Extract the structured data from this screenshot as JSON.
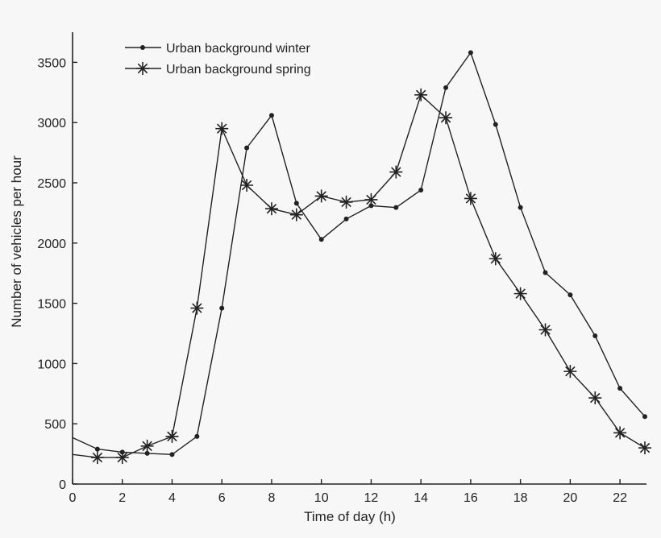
{
  "chart_data": {
    "type": "line",
    "xlabel": "Time of day (h)",
    "ylabel": "Number of vehicles per hour",
    "xlim": [
      0,
      23
    ],
    "ylim": [
      0,
      3750
    ],
    "xticks": [
      0,
      2,
      4,
      6,
      8,
      10,
      12,
      14,
      16,
      18,
      20,
      22
    ],
    "yticks": [
      0,
      500,
      1000,
      1500,
      2000,
      2500,
      3000,
      3500
    ],
    "legend_position": "top-left",
    "grid": false,
    "x": [
      0,
      1,
      2,
      3,
      4,
      5,
      6,
      7,
      8,
      9,
      10,
      11,
      12,
      13,
      14,
      15,
      16,
      17,
      18,
      19,
      20,
      21,
      22,
      23
    ],
    "series": [
      {
        "name": "Urban background winter",
        "marker": "dot",
        "values": [
          385,
          290,
          265,
          255,
          245,
          395,
          1460,
          2790,
          3060,
          2330,
          2030,
          2200,
          2310,
          2295,
          2440,
          3290,
          3580,
          2985,
          2295,
          1755,
          1570,
          1230,
          795,
          560
        ]
      },
      {
        "name": "Urban background spring",
        "marker": "star",
        "values": [
          245,
          220,
          220,
          315,
          395,
          1460,
          2950,
          2480,
          2285,
          2235,
          2390,
          2340,
          2360,
          2590,
          3230,
          3040,
          2370,
          1870,
          1580,
          1280,
          935,
          715,
          425,
          300
        ]
      }
    ]
  }
}
